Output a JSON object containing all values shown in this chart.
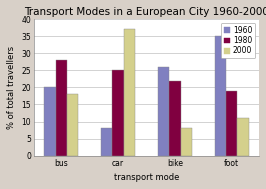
{
  "title": "Transport Modes in a European City 1960-2000",
  "categories": [
    "bus",
    "car",
    "bike",
    "foot"
  ],
  "xlabel": "transport mode",
  "ylabel": "% of total travellers",
  "years": [
    "1960",
    "1980",
    "2000"
  ],
  "values": {
    "1960": [
      20,
      8,
      26,
      35
    ],
    "1980": [
      28,
      25,
      22,
      19
    ],
    "2000": [
      18,
      37,
      8,
      11
    ]
  },
  "colors": {
    "1960": "#8080c0",
    "1980": "#800040",
    "2000": "#d4d08c"
  },
  "ylim": [
    0,
    40
  ],
  "yticks": [
    0,
    5,
    10,
    15,
    20,
    25,
    30,
    35,
    40
  ],
  "page_bg": "#d8d0c8",
  "plot_bg": "#ffffff",
  "grid_color": "#c0c0c0",
  "legend_fontsize": 5.5,
  "title_fontsize": 7.5,
  "axis_label_fontsize": 6,
  "tick_fontsize": 5.5,
  "bar_width": 0.2,
  "bar_edge_color": "#888888",
  "bar_edge_width": 0.3
}
